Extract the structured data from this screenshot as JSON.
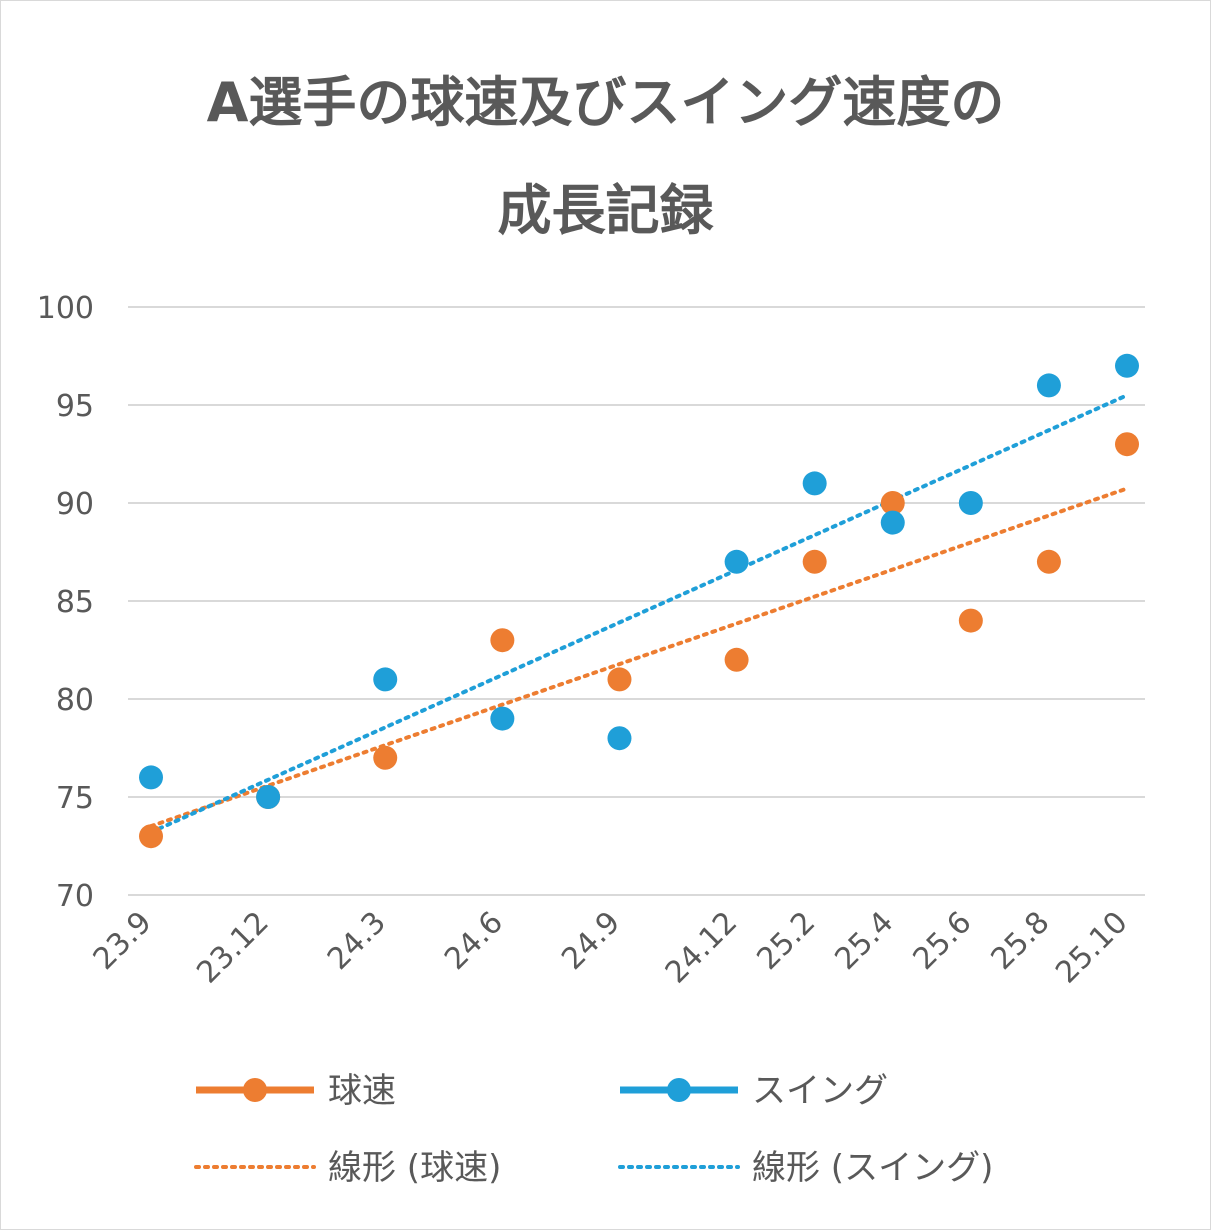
{
  "chart_data": {
    "type": "scatter",
    "title_line1": "A選手の球速及びスイング速度の",
    "title_line2": "成長記録",
    "categories": [
      "23.9",
      "23.12",
      "24.3",
      "24.6",
      "24.9",
      "24.12",
      "25.2",
      "25.4",
      "25.6",
      "25.8",
      "25.10"
    ],
    "x": [
      0,
      3,
      6,
      9,
      12,
      15,
      17,
      19,
      21,
      23,
      25
    ],
    "ylim": [
      70,
      100
    ],
    "yticks": [
      70,
      75,
      80,
      85,
      90,
      95,
      100
    ],
    "grid": true,
    "legend_position": "bottom",
    "series": [
      {
        "name": "球速",
        "color": "#ED7D31",
        "values": [
          73,
          75,
          77,
          83,
          81,
          82,
          87,
          90,
          84,
          87,
          93
        ]
      },
      {
        "name": "スイング",
        "color": "#1F9FD8",
        "values": [
          76,
          75,
          81,
          79,
          78,
          87,
          91,
          89,
          90,
          96,
          97
        ]
      }
    ],
    "trendlines": [
      {
        "name": "線形 (球速)",
        "color": "#ED7D31",
        "series": 0
      },
      {
        "name": "線形 (スイング)",
        "color": "#1F9FD8",
        "series": 1
      }
    ]
  }
}
